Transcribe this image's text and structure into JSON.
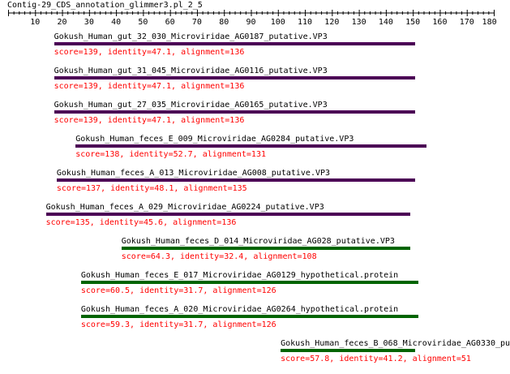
{
  "contig_title": "Contig-29_CDS_annotation_glimmer3.pl_2_5",
  "axis": {
    "min": 0,
    "max": 180,
    "tick_labels": [
      "10",
      "20",
      "30",
      "40",
      "50",
      "60",
      "70",
      "80",
      "90",
      "100",
      "110",
      "120",
      "130",
      "140",
      "150",
      "160",
      "170",
      "180"
    ]
  },
  "colors": {
    "vp3_bar": "#4b0055",
    "protein_bar": "#006400",
    "stats_text": "#ff0000",
    "label_text": "#000000"
  },
  "hits": [
    {
      "name": "Gokush_Human_gut_32_030_Microviridae_AG0187_putative.VP3",
      "stats": "score=139, identity=47.1, alignment=136",
      "start": 17,
      "end": 151,
      "color": "#4b0055"
    },
    {
      "name": "Gokush_Human_gut_31_045_Microviridae_AG0116_putative.VP3",
      "stats": "score=139, identity=47.1, alignment=136",
      "start": 17,
      "end": 151,
      "color": "#4b0055"
    },
    {
      "name": "Gokush_Human_gut_27_035_Microviridae_AG0165_putative.VP3",
      "stats": "score=139, identity=47.1, alignment=136",
      "start": 17,
      "end": 151,
      "color": "#4b0055"
    },
    {
      "name": "Gokush_Human_feces_E_009_Microviridae_AG0284_putative.VP3",
      "stats": "score=138, identity=52.7, alignment=131",
      "start": 25,
      "end": 155,
      "color": "#4b0055"
    },
    {
      "name": "Gokush_Human_feces_A_013_Microviridae_AG008_putative.VP3",
      "stats": "score=137, identity=48.1, alignment=135",
      "start": 18,
      "end": 151,
      "color": "#4b0055"
    },
    {
      "name": "Gokush_Human_feces_A_029_Microviridae_AG0224_putative.VP3",
      "stats": "score=135, identity=45.6, alignment=136",
      "start": 14,
      "end": 149,
      "color": "#4b0055"
    },
    {
      "name": "Gokush_Human_feces_D_014_Microviridae_AG028_putative.VP3",
      "stats": "score=64.3, identity=32.4, alignment=108",
      "start": 42,
      "end": 149,
      "color": "#006400"
    },
    {
      "name": "Gokush_Human_feces_E_017_Microviridae_AG0129_hypothetical.protein",
      "stats": "score=60.5, identity=31.7, alignment=126",
      "start": 27,
      "end": 152,
      "color": "#006400"
    },
    {
      "name": "Gokush_Human_feces_A_020_Microviridae_AG0264_hypothetical.protein",
      "stats": "score=59.3, identity=31.7, alignment=126",
      "start": 27,
      "end": 152,
      "color": "#006400"
    },
    {
      "name": "Gokush_Human_feces_B_068_Microviridae_AG0330_pu",
      "stats": "score=57.8, identity=41.2, alignment=51",
      "start": 101,
      "end": 151,
      "color": "#006400"
    }
  ]
}
